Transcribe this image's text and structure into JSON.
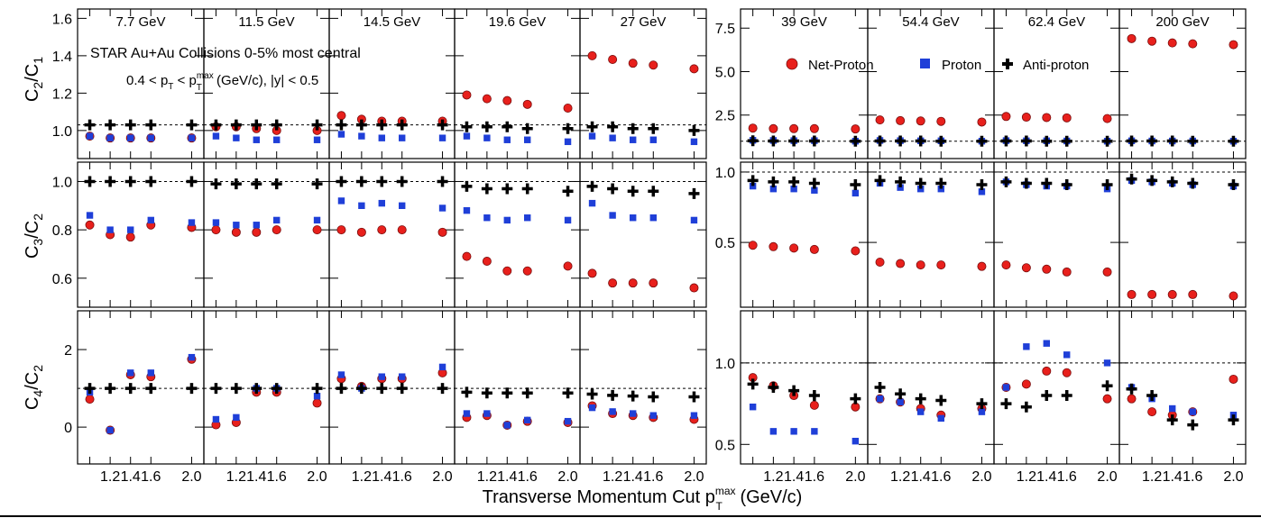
{
  "chart_data": {
    "type": "scatter",
    "title": "",
    "annotation": {
      "line1": "STAR Au+Au Collisions 0-5% most central",
      "line2_prefix": "0.4 < p",
      "line2_sub1": "T",
      "line2_mid": " < p",
      "line2_sup": "max",
      "line2_sub2": "T",
      "line2_suffix": " (GeV/c), |y| < 0.5"
    },
    "xlabel": {
      "main": "Transverse Momentum Cut p",
      "sup": "max",
      "sub": "T",
      "unit": " (GeV/c)"
    },
    "ylabels": [
      {
        "n": "C",
        "ns": "2",
        "d": "/C",
        "ds": "1"
      },
      {
        "n": "C",
        "ns": "3",
        "d": "/C",
        "ds": "2"
      },
      {
        "n": "C",
        "ns": "4",
        "d": "/C",
        "ds": "2"
      }
    ],
    "legend": {
      "placement": "top-right",
      "items": [
        {
          "name": "Net-Proton",
          "marker": "circle",
          "color": "#e8201c"
        },
        {
          "name": "Proton",
          "marker": "square",
          "color": "#1f3fd8"
        },
        {
          "name": "Anti-proton",
          "marker": "cross",
          "color": "#000000"
        }
      ]
    },
    "energies": [
      "7.7 GeV",
      "11.5 GeV",
      "14.5 GeV",
      "19.6 GeV",
      "27 GeV",
      "39 GeV",
      "54.4 GeV",
      "62.4 GeV",
      "200 GeV"
    ],
    "x": [
      1.0,
      1.2,
      1.4,
      1.6,
      2.0
    ],
    "xticks": [
      "1.2",
      "1.4",
      "1.6",
      "2.0"
    ],
    "xlim": [
      0.88,
      2.12
    ],
    "groups": [
      {
        "energy_indices": [
          0,
          1,
          2,
          3,
          4
        ],
        "rows": [
          {
            "ylim": [
              0.85,
              1.65
            ],
            "yticks": [
              "1.0",
              "1.2",
              "1.4",
              "1.6"
            ],
            "ytick_values": [
              1.0,
              1.2,
              1.4,
              1.6
            ],
            "refline": 1.03
          },
          {
            "ylim": [
              0.48,
              1.08
            ],
            "yticks": [
              "0.6",
              "0.8",
              "1.0"
            ],
            "ytick_values": [
              0.6,
              0.8,
              1.0
            ],
            "refline": 1.0
          },
          {
            "ylim": [
              -0.95,
              3.0
            ],
            "yticks": [
              "0",
              "2"
            ],
            "ytick_values": [
              0,
              2
            ],
            "refline": 1.0
          }
        ]
      },
      {
        "energy_indices": [
          5,
          6,
          7,
          8
        ],
        "rows": [
          {
            "ylim": [
              0.0,
              8.6
            ],
            "yticks": [
              "2.5",
              "5.0",
              "7.5"
            ],
            "ytick_values": [
              2.5,
              5.0,
              7.5
            ],
            "refline": 1.0
          },
          {
            "ylim": [
              0.04,
              1.07
            ],
            "yticks": [
              "0.5",
              "1.0"
            ],
            "ytick_values": [
              0.5,
              1.0
            ],
            "refline": 1.0
          },
          {
            "ylim": [
              0.38,
              1.32
            ],
            "yticks": [
              "0.5",
              "1.0"
            ],
            "ytick_values": [
              0.5,
              1.0
            ],
            "refline": 1.0
          }
        ]
      }
    ],
    "series": [
      {
        "name": "Net-Proton",
        "values": [
          [
            [
              0.97,
              0.96,
              0.96,
              0.96,
              0.96
            ],
            [
              0.82,
              0.78,
              0.77,
              0.82,
              0.81
            ],
            [
              0.72,
              -0.08,
              1.35,
              1.3,
              1.75
            ]
          ],
          [
            [
              1.02,
              1.02,
              1.01,
              1.0,
              1.0
            ],
            [
              0.8,
              0.79,
              0.79,
              0.8,
              0.8
            ],
            [
              0.06,
              0.12,
              0.9,
              0.9,
              0.62
            ]
          ],
          [
            [
              1.08,
              1.06,
              1.05,
              1.05,
              1.05
            ],
            [
              0.8,
              0.79,
              0.8,
              0.8,
              0.79
            ],
            [
              1.25,
              1.05,
              1.25,
              1.25,
              1.4
            ]
          ],
          [
            [
              1.19,
              1.17,
              1.16,
              1.14,
              1.12
            ],
            [
              0.69,
              0.67,
              0.63,
              0.63,
              0.65
            ],
            [
              0.25,
              0.3,
              0.05,
              0.15,
              0.12
            ]
          ],
          [
            [
              1.4,
              1.38,
              1.36,
              1.35,
              1.33
            ],
            [
              0.62,
              0.58,
              0.58,
              0.58,
              0.56
            ],
            [
              0.55,
              0.35,
              0.3,
              0.25,
              0.2
            ]
          ],
          [
            [
              1.75,
              1.72,
              1.72,
              1.72,
              1.7
            ],
            [
              0.48,
              0.47,
              0.46,
              0.45,
              0.44
            ],
            [
              0.91,
              0.86,
              0.8,
              0.74,
              0.73
            ]
          ],
          [
            [
              2.22,
              2.18,
              2.16,
              2.14,
              2.1
            ],
            [
              0.36,
              0.35,
              0.34,
              0.34,
              0.33
            ],
            [
              0.78,
              0.76,
              0.72,
              0.68,
              0.72
            ]
          ],
          [
            [
              2.42,
              2.38,
              2.36,
              2.34,
              2.3
            ],
            [
              0.34,
              0.32,
              0.31,
              0.29,
              0.29
            ],
            [
              0.85,
              0.87,
              0.95,
              0.94,
              0.78
            ]
          ],
          [
            [
              6.9,
              6.75,
              6.65,
              6.6,
              6.55
            ],
            [
              0.13,
              0.13,
              0.13,
              0.13,
              0.12
            ],
            [
              0.78,
              0.7,
              0.68,
              0.7,
              0.9
            ]
          ]
        ]
      },
      {
        "name": "Proton",
        "values": [
          [
            [
              0.97,
              0.96,
              0.96,
              0.96,
              0.96
            ],
            [
              0.86,
              0.8,
              0.8,
              0.84,
              0.83
            ],
            [
              0.9,
              -0.08,
              1.4,
              1.4,
              1.8
            ]
          ],
          [
            [
              0.97,
              0.96,
              0.95,
              0.95,
              0.95
            ],
            [
              0.83,
              0.82,
              0.82,
              0.84,
              0.84
            ],
            [
              0.2,
              0.25,
              1.0,
              1.0,
              0.8
            ]
          ],
          [
            [
              0.98,
              0.97,
              0.96,
              0.96,
              0.96
            ],
            [
              0.92,
              0.9,
              0.91,
              0.9,
              0.89
            ],
            [
              1.35,
              1.0,
              1.3,
              1.3,
              1.55
            ]
          ],
          [
            [
              0.97,
              0.96,
              0.95,
              0.95,
              0.94
            ],
            [
              0.88,
              0.85,
              0.84,
              0.85,
              0.84
            ],
            [
              0.35,
              0.35,
              0.05,
              0.18,
              0.15
            ]
          ],
          [
            [
              0.97,
              0.96,
              0.95,
              0.95,
              0.94
            ],
            [
              0.91,
              0.86,
              0.85,
              0.85,
              0.84
            ],
            [
              0.5,
              0.4,
              0.35,
              0.3,
              0.3
            ]
          ],
          [
            [
              1.05,
              1.04,
              1.03,
              1.03,
              1.0
            ],
            [
              0.9,
              0.88,
              0.88,
              0.87,
              0.85
            ],
            [
              0.73,
              0.58,
              0.58,
              0.58,
              0.52
            ]
          ],
          [
            [
              1.04,
              1.03,
              1.02,
              1.02,
              1.0
            ],
            [
              0.92,
              0.89,
              0.88,
              0.88,
              0.86
            ],
            [
              0.78,
              0.76,
              0.7,
              0.66,
              0.7
            ]
          ],
          [
            [
              1.03,
              1.02,
              1.02,
              1.01,
              1.0
            ],
            [
              0.93,
              0.91,
              0.9,
              0.9,
              0.88
            ],
            [
              0.85,
              1.1,
              1.12,
              1.05,
              1.0
            ]
          ],
          [
            [
              1.02,
              1.01,
              1.01,
              1.01,
              1.0
            ],
            [
              0.94,
              0.93,
              0.92,
              0.91,
              0.9
            ],
            [
              0.85,
              0.78,
              0.72,
              0.7,
              0.68
            ]
          ]
        ]
      },
      {
        "name": "Anti-proton",
        "values": [
          [
            [
              1.03,
              1.03,
              1.03,
              1.03,
              1.03
            ],
            [
              1.0,
              1.0,
              1.0,
              1.0,
              1.0
            ],
            [
              1.0,
              1.0,
              1.0,
              1.0,
              1.0
            ]
          ],
          [
            [
              1.03,
              1.03,
              1.03,
              1.03,
              1.03
            ],
            [
              0.99,
              0.99,
              0.99,
              0.99,
              0.99
            ],
            [
              1.0,
              1.0,
              1.0,
              1.0,
              1.0
            ]
          ],
          [
            [
              1.03,
              1.03,
              1.03,
              1.03,
              1.03
            ],
            [
              1.0,
              1.0,
              1.0,
              1.0,
              1.0
            ],
            [
              1.0,
              1.0,
              1.0,
              1.0,
              1.0
            ]
          ],
          [
            [
              1.02,
              1.02,
              1.02,
              1.01,
              1.01
            ],
            [
              0.98,
              0.97,
              0.97,
              0.97,
              0.96
            ],
            [
              0.9,
              0.88,
              0.88,
              0.88,
              0.88
            ]
          ],
          [
            [
              1.02,
              1.02,
              1.01,
              1.01,
              1.0
            ],
            [
              0.98,
              0.97,
              0.96,
              0.96,
              0.95
            ],
            [
              0.85,
              0.82,
              0.8,
              0.78,
              0.78
            ]
          ],
          [
            [
              1.02,
              1.01,
              1.01,
              1.01,
              1.0
            ],
            [
              0.94,
              0.93,
              0.93,
              0.92,
              0.91
            ],
            [
              0.87,
              0.85,
              0.83,
              0.8,
              0.78
            ]
          ],
          [
            [
              1.01,
              1.01,
              1.01,
              1.0,
              1.0
            ],
            [
              0.94,
              0.93,
              0.92,
              0.92,
              0.91
            ],
            [
              0.85,
              0.81,
              0.78,
              0.77,
              0.75
            ]
          ],
          [
            [
              1.01,
              1.01,
              1.0,
              1.0,
              1.0
            ],
            [
              0.93,
              0.92,
              0.92,
              0.91,
              0.91
            ],
            [
              0.75,
              0.73,
              0.8,
              0.8,
              0.86
            ]
          ],
          [
            [
              1.01,
              1.01,
              1.01,
              1.0,
              1.0
            ],
            [
              0.95,
              0.94,
              0.93,
              0.92,
              0.91
            ],
            [
              0.84,
              0.8,
              0.65,
              0.62,
              0.65
            ]
          ]
        ]
      }
    ]
  }
}
